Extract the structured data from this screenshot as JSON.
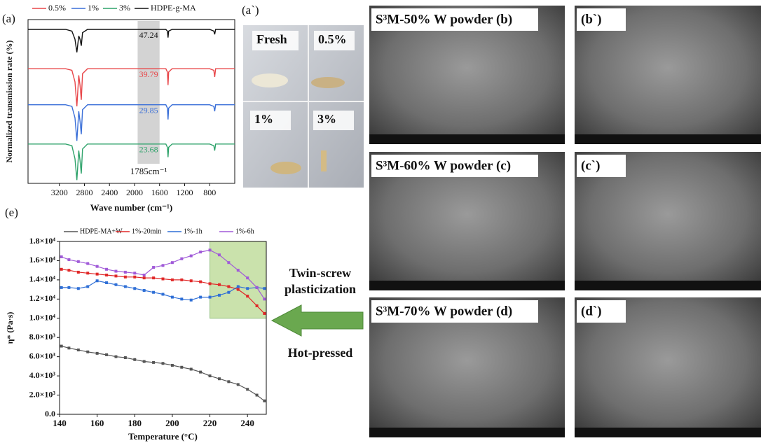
{
  "chart_data": [
    {
      "type": "line",
      "label": "(a)",
      "xlabel": "Wave number (cm⁻¹)",
      "ylabel": "Normalized transmission rate (%)",
      "x": [
        3700,
        3100,
        3000,
        2950,
        2920,
        2890,
        2870,
        2850,
        2830,
        2750,
        2000,
        1800,
        1500,
        1475,
        1465,
        1455,
        1400,
        800,
        735,
        720,
        705,
        400
      ],
      "xlim": [
        3700,
        400
      ],
      "xticks": [
        3200,
        2800,
        2400,
        2000,
        1600,
        1200,
        800
      ],
      "ylim": [
        0,
        100
      ],
      "series": [
        {
          "name": "0.5%",
          "color": "#e8474a",
          "values": [
            70,
            70,
            69,
            62,
            47,
            66,
            60,
            51,
            67,
            70,
            70,
            70,
            70,
            68,
            60,
            68,
            70,
            70,
            69,
            65,
            70,
            70
          ]
        },
        {
          "name": "1%",
          "color": "#3a6fd8",
          "values": [
            48,
            48,
            47,
            40,
            26,
            44,
            38,
            30,
            45,
            48,
            48,
            48,
            48,
            46,
            39,
            46,
            48,
            48,
            47,
            44,
            48,
            48
          ]
        },
        {
          "name": "3%",
          "color": "#2fa36b",
          "values": [
            24,
            24,
            23,
            15,
            2,
            20,
            14,
            6,
            21,
            24,
            24,
            24,
            24,
            22,
            16,
            22,
            24,
            24,
            23,
            20,
            24,
            24
          ]
        },
        {
          "name": "HDPE-g-MA",
          "color": "#111111",
          "values": [
            94,
            94,
            93,
            88,
            80,
            90,
            88,
            84,
            92,
            94,
            94,
            94,
            94,
            93,
            89,
            93,
            94,
            94,
            93,
            91,
            94,
            94
          ]
        }
      ],
      "annotations": [
        "39.79",
        "29.85",
        "23.68",
        "47.24"
      ],
      "highlight_x": [
        1950,
        1600
      ],
      "highlight_label": "1785cm⁻¹"
    },
    {
      "type": "line",
      "label": "(e)",
      "xlabel": "Temperature (°C)",
      "ylabel": "η* (Pa·s)",
      "markers": true,
      "x": [
        141,
        145,
        150,
        155,
        160,
        165,
        170,
        175,
        180,
        185,
        190,
        195,
        200,
        205,
        210,
        215,
        220,
        225,
        230,
        235,
        240,
        245,
        249
      ],
      "xlim": [
        140,
        250
      ],
      "xticks": [
        140,
        160,
        180,
        200,
        220,
        240
      ],
      "ylim": [
        0,
        18000
      ],
      "yticks": [
        {
          "value": 0,
          "label": "0.0"
        },
        {
          "value": 2000,
          "label": "2.0×10³"
        },
        {
          "value": 4000,
          "label": "4.0×10³"
        },
        {
          "value": 6000,
          "label": "6.0×10³"
        },
        {
          "value": 8000,
          "label": "8.0×10³"
        },
        {
          "value": 10000,
          "label": "1.0×10⁴"
        },
        {
          "value": 12000,
          "label": "1.2×10⁴"
        },
        {
          "value": 14000,
          "label": "1.4×10⁴"
        },
        {
          "value": 16000,
          "label": "1.6×10⁴"
        },
        {
          "value": 18000,
          "label": "1.8×10⁴"
        }
      ],
      "series": [
        {
          "name": "HDPE-MA+W",
          "color": "#555555",
          "values": [
            7100,
            6900,
            6700,
            6500,
            6350,
            6200,
            6000,
            5900,
            5700,
            5500,
            5400,
            5300,
            5100,
            4900,
            4700,
            4400,
            4000,
            3700,
            3400,
            3100,
            2600,
            2000,
            1400
          ]
        },
        {
          "name": "1%-20min",
          "color": "#e02828",
          "values": [
            15100,
            15000,
            14800,
            14700,
            14600,
            14500,
            14400,
            14300,
            14300,
            14200,
            14200,
            14100,
            14000,
            14000,
            13900,
            13800,
            13600,
            13500,
            13300,
            13000,
            12300,
            11300,
            10500
          ]
        },
        {
          "name": "1%-1h",
          "color": "#2f6fd6",
          "values": [
            13200,
            13200,
            13100,
            13300,
            13900,
            13700,
            13500,
            13300,
            13100,
            12900,
            12700,
            12500,
            12200,
            12000,
            11900,
            12200,
            12200,
            12400,
            12700,
            13300,
            13100,
            13200,
            13100
          ]
        },
        {
          "name": "1%-6h",
          "color": "#a05ad8",
          "values": [
            16400,
            16100,
            15900,
            15700,
            15400,
            15100,
            14900,
            14800,
            14700,
            14500,
            15300,
            15500,
            15800,
            16200,
            16500,
            16900,
            17100,
            16600,
            15800,
            15000,
            14200,
            13200,
            12000
          ]
        }
      ],
      "highlight": {
        "x": [
          220,
          250
        ],
        "y": [
          10000,
          18000
        ]
      }
    }
  ],
  "photo": {
    "label": "(a`)",
    "tags": [
      "Fresh",
      "0.5%",
      "1%",
      "3%"
    ]
  },
  "sem": [
    "S³M-50% W powder (b)",
    "(b`)",
    "S³M-60% W powder (c)",
    "(c`)",
    "S³M-70% W powder (d)",
    "(d`)"
  ],
  "process": {
    "top": [
      "Twin-screw",
      "plasticization"
    ],
    "bottom": "Hot-pressed"
  }
}
